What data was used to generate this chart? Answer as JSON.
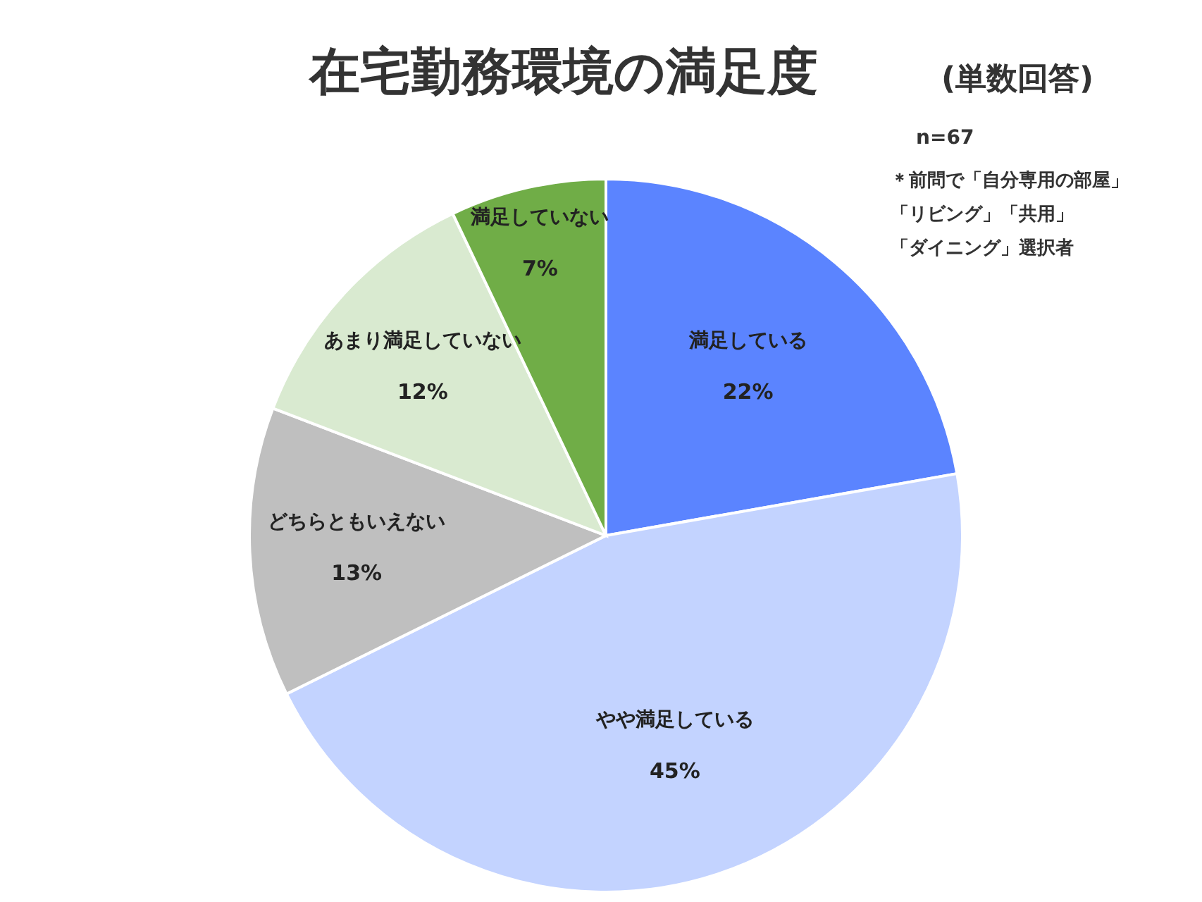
{
  "chart_data": {
    "type": "pie",
    "title": "在宅勤務環境の満足度",
    "subtitle": "(単数回答)",
    "categories": [
      "満足している",
      "やや満足している",
      "どちらともいえない",
      "あまり満足していない",
      "満足していない"
    ],
    "values": [
      22,
      45,
      13,
      12,
      7
    ],
    "value_labels": [
      "22%",
      "45%",
      "13%",
      "12%",
      "7%"
    ],
    "colors": [
      "#5b84ff",
      "#c3d3ff",
      "#bfbfbf",
      "#d9ead0",
      "#70ad47"
    ],
    "annotations": [
      "n=67",
      "＊前問で「自分専用の部屋」",
      "「リビング」「共用」",
      "「ダイニング」選択者"
    ]
  }
}
